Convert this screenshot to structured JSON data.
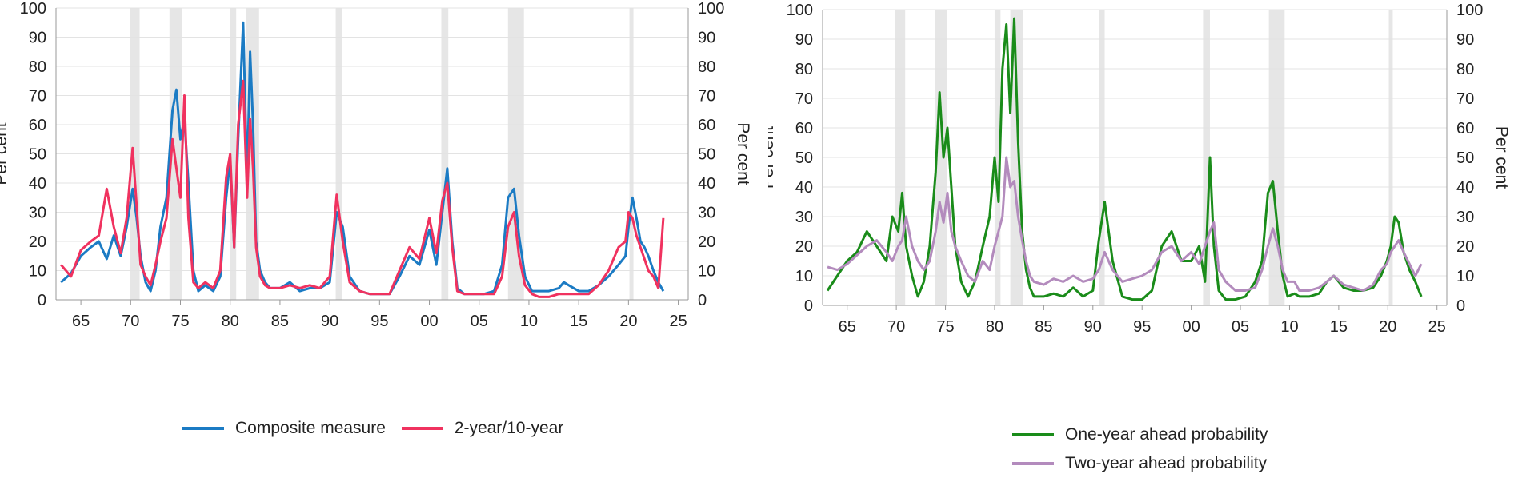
{
  "chart_data": [
    {
      "type": "line",
      "ylabel_left": "Per cent",
      "ylabel_right": "Per cent",
      "ylim": [
        0,
        100
      ],
      "y_ticks": [
        "0",
        "10",
        "20",
        "30",
        "40",
        "50",
        "60",
        "70",
        "80",
        "90",
        "100"
      ],
      "x_ticks": [
        "65",
        "70",
        "75",
        "80",
        "85",
        "90",
        "95",
        "00",
        "05",
        "10",
        "15",
        "20",
        "25"
      ],
      "x_tick_years": [
        1965,
        1970,
        1975,
        1980,
        1985,
        1990,
        1995,
        2000,
        2005,
        2010,
        2015,
        2020,
        2025
      ],
      "xlim": [
        1962.5,
        2026
      ],
      "grid": true,
      "legend_position": "bottom",
      "shading": [
        [
          1969.9,
          1970.9
        ],
        [
          1973.9,
          1975.2
        ],
        [
          1980.0,
          1980.6
        ],
        [
          1981.6,
          1982.9
        ],
        [
          1990.6,
          1991.2
        ],
        [
          2001.2,
          2001.9
        ],
        [
          2007.9,
          2009.5
        ],
        [
          2020.1,
          2020.5
        ]
      ],
      "series": [
        {
          "name": "Composite measure",
          "color": "#1b7bc4",
          "x": [
            1963,
            1964,
            1965,
            1966,
            1966.8,
            1967.6,
            1968.3,
            1969,
            1969.6,
            1970.2,
            1970.6,
            1971,
            1971.5,
            1972,
            1972.5,
            1973,
            1973.6,
            1974.2,
            1974.6,
            1975,
            1975.4,
            1975.8,
            1976.3,
            1976.8,
            1977.5,
            1978.3,
            1979,
            1979.6,
            1980,
            1980.4,
            1980.8,
            1981.3,
            1981.7,
            1982,
            1982.3,
            1982.6,
            1983,
            1983.5,
            1984,
            1985,
            1986,
            1987,
            1988,
            1989,
            1990,
            1990.7,
            1991.3,
            1992,
            1993,
            1994,
            1995,
            1996,
            1997,
            1998,
            1999,
            2000,
            2000.7,
            2001.3,
            2001.8,
            2002.3,
            2002.8,
            2003.5,
            2004.5,
            2005.5,
            2006.5,
            2007.3,
            2007.9,
            2008.5,
            2009,
            2009.6,
            2010.3,
            2011,
            2012,
            2013,
            2013.5,
            2014,
            2015,
            2016,
            2017,
            2018,
            2019,
            2019.7,
            2020,
            2020.4,
            2020.8,
            2021.2,
            2021.6,
            2022,
            2022.5,
            2023,
            2023.5
          ],
          "values": [
            6,
            9,
            15,
            18,
            20,
            14,
            22,
            15,
            25,
            38,
            28,
            15,
            6,
            3,
            10,
            25,
            35,
            65,
            72,
            55,
            62,
            40,
            10,
            3,
            5,
            3,
            8,
            35,
            48,
            18,
            55,
            95,
            40,
            85,
            60,
            20,
            10,
            6,
            4,
            4,
            6,
            3,
            4,
            4,
            6,
            30,
            25,
            8,
            3,
            2,
            2,
            2,
            8,
            15,
            12,
            24,
            12,
            30,
            45,
            20,
            4,
            2,
            2,
            2,
            3,
            12,
            35,
            38,
            22,
            8,
            3,
            3,
            3,
            4,
            6,
            5,
            3,
            3,
            5,
            8,
            12,
            15,
            25,
            35,
            28,
            20,
            18,
            15,
            10,
            6,
            3
          ]
        },
        {
          "name": "2-year/10-year",
          "color": "#f0325f",
          "x": [
            1963,
            1964,
            1965,
            1966,
            1966.8,
            1967.6,
            1968.3,
            1969,
            1969.6,
            1970.2,
            1970.6,
            1971,
            1971.5,
            1972,
            1972.5,
            1973,
            1973.6,
            1974.2,
            1974.6,
            1975,
            1975.4,
            1975.8,
            1976.3,
            1976.8,
            1977.5,
            1978.3,
            1979,
            1979.6,
            1980,
            1980.4,
            1980.8,
            1981.3,
            1981.7,
            1982,
            1982.3,
            1982.6,
            1983,
            1983.5,
            1984,
            1985,
            1986,
            1987,
            1988,
            1989,
            1990,
            1990.7,
            1991.3,
            1992,
            1993,
            1994,
            1995,
            1996,
            1997,
            1998,
            1999,
            2000,
            2000.7,
            2001.3,
            2001.8,
            2002.3,
            2002.8,
            2003.5,
            2004.5,
            2005.5,
            2006.5,
            2007.3,
            2007.9,
            2008.5,
            2009,
            2009.6,
            2010.3,
            2011,
            2012,
            2013,
            2013.5,
            2014,
            2015,
            2016,
            2017,
            2018,
            2019,
            2019.7,
            2020,
            2020.4,
            2020.8,
            2021.2,
            2021.6,
            2022,
            2022.5,
            2023,
            2023.5
          ],
          "values": [
            12,
            8,
            17,
            20,
            22,
            38,
            25,
            16,
            28,
            52,
            32,
            12,
            8,
            5,
            12,
            20,
            28,
            55,
            45,
            35,
            70,
            28,
            6,
            4,
            6,
            4,
            10,
            42,
            50,
            18,
            60,
            75,
            35,
            62,
            45,
            18,
            8,
            5,
            4,
            4,
            5,
            4,
            5,
            4,
            8,
            36,
            20,
            6,
            3,
            2,
            2,
            2,
            10,
            18,
            14,
            28,
            16,
            34,
            40,
            18,
            3,
            2,
            2,
            2,
            2,
            8,
            25,
            30,
            15,
            5,
            2,
            1,
            1,
            2,
            2,
            2,
            2,
            2,
            5,
            10,
            18,
            20,
            30,
            28,
            22,
            18,
            14,
            10,
            8,
            4,
            28
          ]
        }
      ]
    },
    {
      "type": "line",
      "ylabel_left": "Per cent",
      "ylabel_right": "Per cent",
      "ylim": [
        0,
        100
      ],
      "y_ticks": [
        "0",
        "10",
        "20",
        "30",
        "40",
        "50",
        "60",
        "70",
        "80",
        "90",
        "100"
      ],
      "x_ticks": [
        "65",
        "70",
        "75",
        "80",
        "85",
        "90",
        "95",
        "00",
        "05",
        "10",
        "15",
        "20",
        "25"
      ],
      "x_tick_years": [
        1965,
        1970,
        1975,
        1980,
        1985,
        1990,
        1995,
        2000,
        2005,
        2010,
        2015,
        2020,
        2025
      ],
      "xlim": [
        1962.5,
        2026
      ],
      "grid": true,
      "legend_position": "bottom",
      "shading": [
        [
          1969.9,
          1970.9
        ],
        [
          1973.9,
          1975.2
        ],
        [
          1980.0,
          1980.6
        ],
        [
          1981.6,
          1982.9
        ],
        [
          1990.6,
          1991.2
        ],
        [
          2001.2,
          2001.9
        ],
        [
          2007.9,
          2009.5
        ],
        [
          2020.1,
          2020.5
        ]
      ],
      "series": [
        {
          "name": "One-year ahead probability",
          "color": "#1a8c1a",
          "x": [
            1963,
            1964,
            1965,
            1966,
            1967,
            1968,
            1969,
            1969.6,
            1970.2,
            1970.6,
            1971,
            1971.6,
            1972.2,
            1972.8,
            1973.4,
            1974,
            1974.4,
            1974.8,
            1975.2,
            1975.6,
            1976,
            1976.6,
            1977.3,
            1978,
            1978.8,
            1979.5,
            1980,
            1980.4,
            1980.8,
            1981.2,
            1981.6,
            1982,
            1982.4,
            1982.8,
            1983.2,
            1983.6,
            1984,
            1985,
            1986,
            1987,
            1988,
            1989,
            1990,
            1990.6,
            1991.2,
            1992,
            1993,
            1994,
            1995,
            1996,
            1997,
            1998,
            1999,
            2000,
            2000.8,
            2001.4,
            2001.9,
            2002.3,
            2002.8,
            2003.5,
            2004.5,
            2005.5,
            2006.5,
            2007.2,
            2007.8,
            2008.3,
            2008.8,
            2009.3,
            2009.8,
            2010.5,
            2011,
            2012,
            2013,
            2013.8,
            2014.5,
            2015.5,
            2016.5,
            2017.5,
            2018.5,
            2019.3,
            2019.9,
            2020.3,
            2020.7,
            2021.1,
            2021.6,
            2022.2,
            2022.8,
            2023.4
          ],
          "values": [
            5,
            10,
            15,
            18,
            25,
            20,
            15,
            30,
            25,
            38,
            20,
            10,
            3,
            8,
            20,
            45,
            72,
            50,
            60,
            40,
            20,
            8,
            3,
            8,
            20,
            30,
            50,
            35,
            80,
            95,
            65,
            97,
            55,
            25,
            12,
            6,
            3,
            3,
            4,
            3,
            6,
            3,
            5,
            22,
            35,
            15,
            3,
            2,
            2,
            5,
            20,
            25,
            15,
            15,
            20,
            8,
            50,
            20,
            5,
            2,
            2,
            3,
            8,
            15,
            38,
            42,
            25,
            10,
            3,
            4,
            3,
            3,
            4,
            8,
            10,
            6,
            5,
            5,
            6,
            10,
            15,
            20,
            30,
            28,
            18,
            12,
            8,
            3
          ]
        },
        {
          "name": "Two-year ahead probability",
          "color": "#b38bbd",
          "x": [
            1963,
            1964,
            1965,
            1966,
            1967,
            1968,
            1969,
            1969.6,
            1970.2,
            1970.6,
            1971,
            1971.6,
            1972.2,
            1972.8,
            1973.4,
            1974,
            1974.4,
            1974.8,
            1975.2,
            1975.6,
            1976,
            1976.6,
            1977.3,
            1978,
            1978.8,
            1979.5,
            1980,
            1980.4,
            1980.8,
            1981.2,
            1981.6,
            1982,
            1982.4,
            1982.8,
            1983.2,
            1983.6,
            1984,
            1985,
            1986,
            1987,
            1988,
            1989,
            1990,
            1990.6,
            1991.2,
            1992,
            1993,
            1994,
            1995,
            1996,
            1997,
            1998,
            1999,
            2000,
            2000.8,
            2001.4,
            2001.9,
            2002.3,
            2002.8,
            2003.5,
            2004.5,
            2005.5,
            2006.5,
            2007.2,
            2007.8,
            2008.3,
            2008.8,
            2009.3,
            2009.8,
            2010.5,
            2011,
            2012,
            2013,
            2013.8,
            2014.5,
            2015.5,
            2016.5,
            2017.5,
            2018.5,
            2019.3,
            2019.9,
            2020.3,
            2020.7,
            2021.1,
            2021.6,
            2022.2,
            2022.8,
            2023.4
          ],
          "values": [
            13,
            12,
            14,
            17,
            20,
            22,
            18,
            15,
            20,
            22,
            30,
            20,
            15,
            12,
            15,
            25,
            35,
            28,
            38,
            25,
            20,
            15,
            10,
            8,
            15,
            12,
            20,
            25,
            30,
            50,
            40,
            42,
            30,
            22,
            15,
            10,
            8,
            7,
            9,
            8,
            10,
            8,
            9,
            12,
            18,
            12,
            8,
            9,
            10,
            12,
            18,
            20,
            15,
            18,
            14,
            20,
            25,
            28,
            12,
            8,
            5,
            5,
            6,
            12,
            20,
            26,
            20,
            12,
            8,
            8,
            5,
            5,
            6,
            8,
            10,
            7,
            6,
            5,
            7,
            12,
            14,
            18,
            20,
            22,
            18,
            14,
            10,
            14
          ]
        }
      ]
    }
  ]
}
